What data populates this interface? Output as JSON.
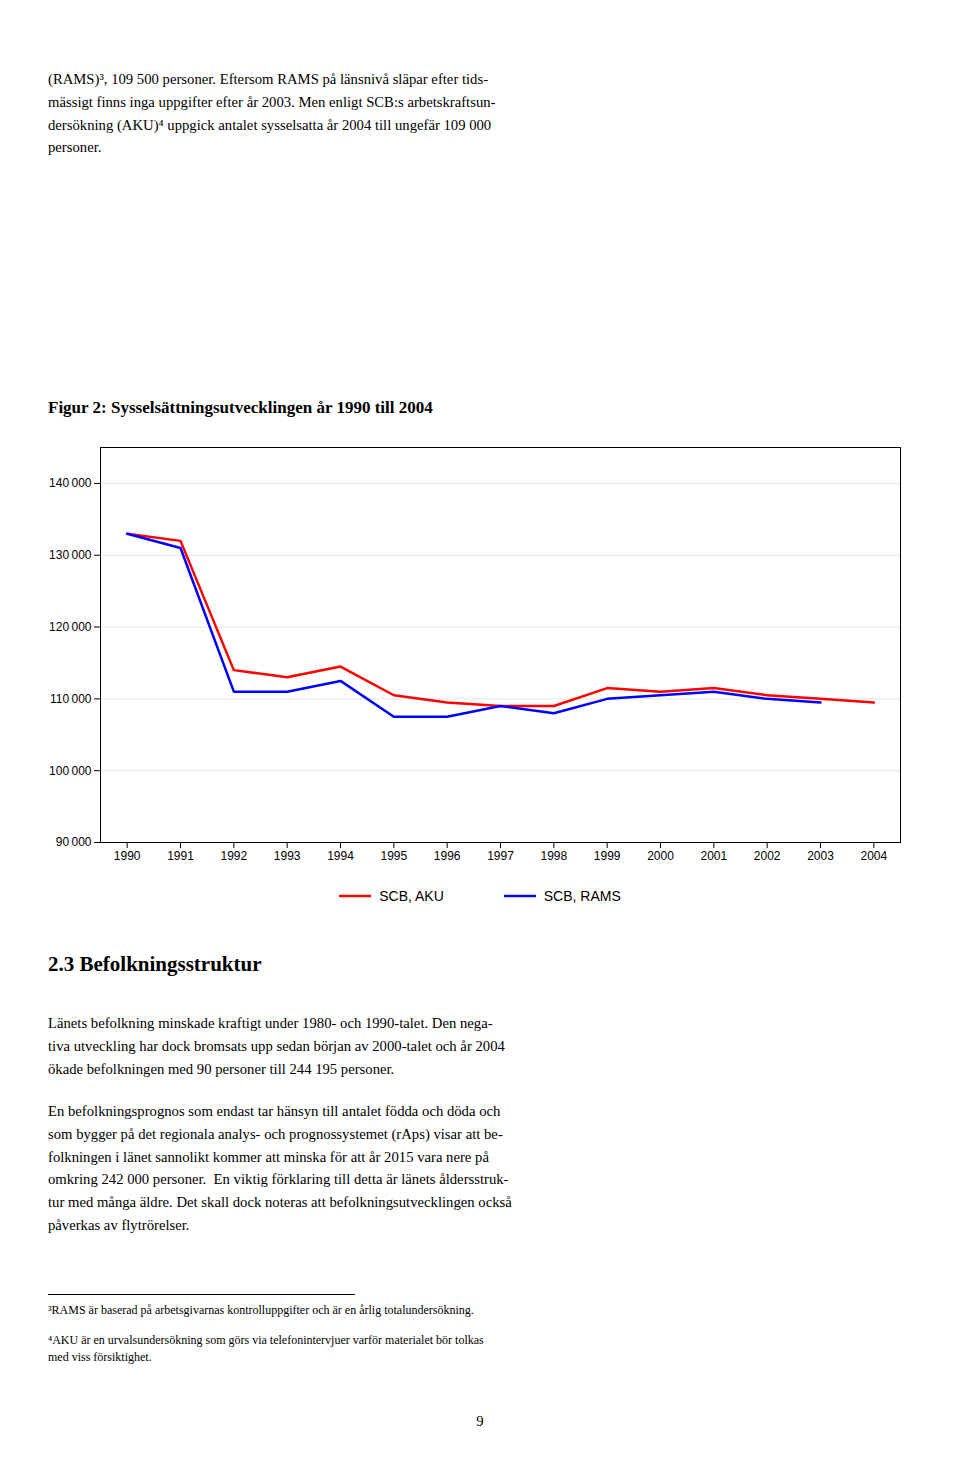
{
  "chart_data": {
    "type": "line",
    "title": "Figur 2: Sysselsättningsutvecklingen år 1990 till 2004",
    "x": [
      1990,
      1991,
      1992,
      1993,
      1994,
      1995,
      1996,
      1997,
      1998,
      1999,
      2000,
      2001,
      2002,
      2003,
      2004
    ],
    "series": [
      {
        "name": "SCB, AKU",
        "color": "#FF0000",
        "values": [
          133000,
          132000,
          114000,
          113000,
          114500,
          110500,
          109500,
          109000,
          109000,
          111500,
          111000,
          111500,
          110500,
          110000,
          109500
        ]
      },
      {
        "name": "SCB, RAMS",
        "color": "#0000FF",
        "values": [
          133000,
          131000,
          111000,
          111000,
          112500,
          107500,
          107500,
          109000,
          108000,
          110000,
          110500,
          111000,
          110000,
          109500,
          null
        ]
      }
    ],
    "xlim": [
      1989.5,
      2004.5
    ],
    "xticks": [
      1990,
      1991,
      1992,
      1993,
      1994,
      1995,
      1996,
      1997,
      1998,
      1999,
      2000,
      2001,
      2002,
      2003,
      2004
    ],
    "ylim": [
      90000,
      145000
    ],
    "yticks": [
      {
        "value": 90000,
        "label": "90 000"
      },
      {
        "value": 100000,
        "label": "100 000"
      },
      {
        "value": 110000,
        "label": "110 000"
      },
      {
        "value": 120000,
        "label": "120 000"
      },
      {
        "value": 130000,
        "label": "130 000"
      },
      {
        "value": 140000,
        "label": "140 000"
      }
    ],
    "grid": true,
    "legend": "bottom",
    "annotations": [
      "(RAMS)³, 109 500 personer. Eftersom RAMS på länsnivå släpar efter tids-\nmässigt finns inga uppgifter efter år 2003. Men enligt SCB:s arbetskraftsun-\ndersökning (AKU)⁴ uppgick antalet sysselsatta år 2004 till ungefär 109 000\npersoner.",
      "2.3 Befolkningsstruktur",
      "Länets befolkning minskade kraftigt under 1980- och 1990-talet. Den nega-\ntiva utveckling har dock bromsats upp sedan början av 2000-talet och år 2004\nökade befolkningen med 90 personer till 244 195 personer.",
      "En befolkningsprognos som endast tar hänsyn till antalet födda och döda och\nsom bygger på det regionala analys- och prognossystemet (rAps) visar att be-\nfolkningen i länet sannolikt kommer att minska för att år 2015 vara nere på\nomkring 242 000 personer.  En viktig förklaring till detta är länets åldersstruk-\ntur med många äldre. Det skall dock noteras att befolkningsutvecklingen också\npåverkas av flytrörelser.",
      "³RAMS är baserad på arbetsgivarnas kontrolluppgifter och är en årlig totalundersökning.",
      "⁴AKU är en urvalsundersökning som görs via telefonintervjuer varför materialet bör tolkas\nmed viss försiktighet.",
      "9"
    ]
  }
}
